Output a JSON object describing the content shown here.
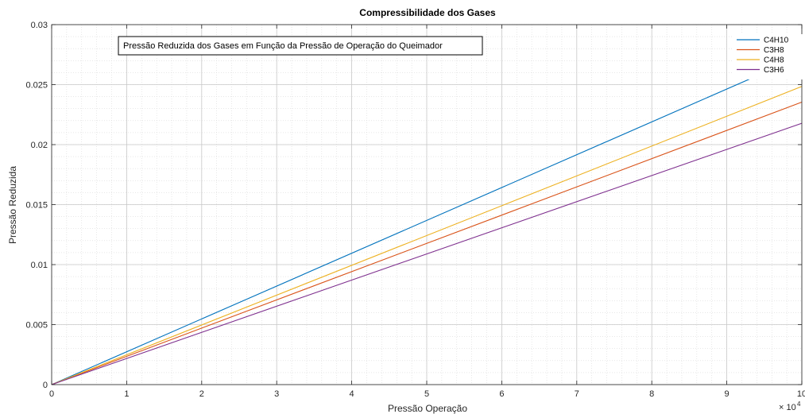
{
  "chart_data": {
    "type": "line",
    "title": "Compressibilidade dos Gases",
    "xlabel": "Pressão Operação",
    "ylabel": "Pressão Reduzida",
    "x_exponent_label": "× 10",
    "x_exponent_power": "4",
    "xlim": [
      0,
      100000
    ],
    "ylim": [
      0,
      0.03
    ],
    "xticks": [
      0,
      10000,
      20000,
      30000,
      40000,
      50000,
      60000,
      70000,
      80000,
      90000,
      100000
    ],
    "xtick_labels": [
      "0",
      "1",
      "2",
      "3",
      "4",
      "5",
      "6",
      "7",
      "8",
      "9",
      "10"
    ],
    "yticks": [
      0,
      0.005,
      0.01,
      0.015,
      0.02,
      0.025,
      0.03
    ],
    "ytick_labels": [
      "0",
      "0.005",
      "0.01",
      "0.015",
      "0.02",
      "0.025",
      "0.03"
    ],
    "grid": true,
    "minor_grid": true,
    "annotation": "Pressão Reduzida dos Gases em Função da Pressão de Operação do Queimador",
    "legend_position": "top-right",
    "series": [
      {
        "name": "C4H10",
        "color": "#0072BD",
        "x": [
          0,
          100000
        ],
        "y": [
          0,
          0.02737
        ]
      },
      {
        "name": "C3H8",
        "color": "#D95319",
        "x": [
          0,
          100000
        ],
        "y": [
          0,
          0.02354
        ]
      },
      {
        "name": "C4H8",
        "color": "#EDB120",
        "x": [
          0,
          100000
        ],
        "y": [
          0,
          0.02485
        ]
      },
      {
        "name": "C3H6",
        "color": "#7E2F8E",
        "x": [
          0,
          100000
        ],
        "y": [
          0,
          0.02178
        ]
      }
    ]
  }
}
